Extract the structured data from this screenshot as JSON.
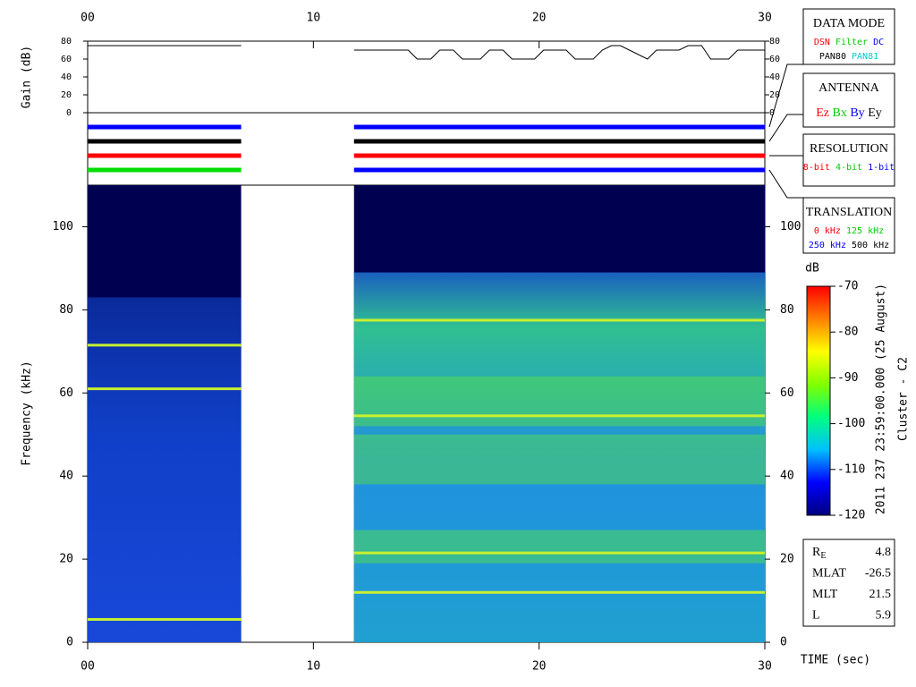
{
  "chart_data": [
    {
      "type": "line",
      "ylabel": "Gain (dB)",
      "xlim": [
        0,
        30
      ],
      "xticks": [
        {
          "value": 0,
          "label": "00"
        },
        10,
        20,
        30
      ],
      "ylim": [
        0,
        80
      ],
      "yticks": [
        0,
        20,
        40,
        60,
        80
      ],
      "series": [
        {
          "color": "#000000",
          "x": [
            0,
            6.8,
            9,
            11.8,
            14.2,
            14.6,
            15.2,
            15.6,
            16.2,
            16.6,
            17.4,
            17.8,
            18.4,
            18.8,
            19.8,
            20.2,
            21.2,
            21.6,
            22.4,
            22.8,
            23.2,
            23.6,
            24.8,
            25.2,
            26.2,
            26.6,
            27.2,
            27.6,
            28.4,
            28.8,
            30
          ],
          "values": [
            75,
            75,
            null,
            70,
            70,
            60,
            60,
            70,
            70,
            60,
            60,
            70,
            70,
            60,
            60,
            70,
            70,
            60,
            60,
            70,
            75,
            75,
            60,
            70,
            70,
            75,
            75,
            60,
            60,
            70,
            70
          ]
        }
      ]
    },
    {
      "type": "timeline",
      "xlim": [
        0,
        30
      ],
      "rows": [
        {
          "segments": [
            {
              "x": [
                0,
                6.8
              ],
              "color": "#0000ff"
            },
            {
              "x": [
                11.8,
                30
              ],
              "color": "#0000ff"
            }
          ]
        },
        {
          "segments": [
            {
              "x": [
                0,
                6.8
              ],
              "color": "#000000"
            },
            {
              "x": [
                11.8,
                30
              ],
              "color": "#000000"
            }
          ]
        },
        {
          "segments": [
            {
              "x": [
                0,
                6.8
              ],
              "color": "#ff0000"
            },
            {
              "x": [
                11.8,
                30
              ],
              "color": "#ff0000"
            }
          ]
        },
        {
          "segments": [
            {
              "x": [
                0,
                6.8
              ],
              "color": "#00dd00"
            },
            {
              "x": [
                11.8,
                30
              ],
              "color": "#0000ff"
            }
          ]
        }
      ]
    },
    {
      "type": "spectrogram",
      "xlabel": "TIME (sec)",
      "ylabel": "Frequency (kHz)",
      "xlim": [
        0,
        30
      ],
      "xticks": [
        {
          "value": 0,
          "label": "00"
        },
        10,
        20,
        30
      ],
      "ylim": [
        0,
        110
      ],
      "yticks": [
        0,
        20,
        40,
        60,
        80,
        100
      ],
      "segments": [
        {
          "x": [
            0,
            6.8
          ],
          "top": 83,
          "lines": [
            5.5,
            61,
            71.5
          ],
          "bands": []
        },
        {
          "x": [
            11.8,
            30
          ],
          "top": 89,
          "lines": [
            12,
            21.5,
            54.5,
            77.5
          ],
          "bands": [
            [
              19,
              27
            ],
            [
              38,
              50
            ],
            [
              52,
              64
            ]
          ]
        }
      ]
    },
    {
      "type": "colorbar",
      "label": "dB",
      "ylim": [
        -120,
        -70
      ],
      "yticks": [
        -120,
        -110,
        -100,
        -90,
        -80,
        -70
      ],
      "colors": [
        "#000080",
        "#0000ff",
        "#00c0ff",
        "#00ff80",
        "#80ff00",
        "#ffff00",
        "#ff8000",
        "#ff0000"
      ]
    }
  ],
  "legend_boxes": {
    "data_mode": {
      "title": "DATA MODE",
      "items": [
        {
          "text": "DSN",
          "color": "#ff0000"
        },
        {
          "text": "Filter",
          "color": "#00cc00"
        },
        {
          "text": "DC",
          "color": "#0000ff"
        },
        {
          "text": "PAN80",
          "color": "#000000"
        },
        {
          "text": "PAN81",
          "color": "#00cccc"
        }
      ]
    },
    "antenna": {
      "title": "ANTENNA",
      "items": [
        {
          "text": "Ez",
          "color": "#ff0000"
        },
        {
          "text": "Bx",
          "color": "#00cc00"
        },
        {
          "text": "By",
          "color": "#0000ff"
        },
        {
          "text": "Ey",
          "color": "#000000"
        }
      ]
    },
    "resolution": {
      "title": "RESOLUTION",
      "items": [
        {
          "text": "8-bit",
          "color": "#ff0000"
        },
        {
          "text": "4-bit",
          "color": "#00cc00"
        },
        {
          "text": "1-bit",
          "color": "#0000ff"
        }
      ]
    },
    "translation": {
      "title": "TRANSLATION",
      "items": [
        {
          "text": "0 kHz",
          "color": "#ff0000"
        },
        {
          "text": "125 kHz",
          "color": "#00cc00"
        },
        {
          "text": "250 kHz",
          "color": "#0000ff"
        },
        {
          "text": "500 kHz",
          "color": "#000000"
        }
      ]
    }
  },
  "timestamp": "2011 237 23:59:00.000 (25 August)",
  "spacecraft": "Cluster - C2",
  "orbit": [
    {
      "label": "R",
      "subscript": "E",
      "value": 4.8
    },
    {
      "label": "MLAT",
      "value": -26.5
    },
    {
      "label": "MLT",
      "value": 21.5
    },
    {
      "label": "L",
      "value": 5.9
    }
  ]
}
